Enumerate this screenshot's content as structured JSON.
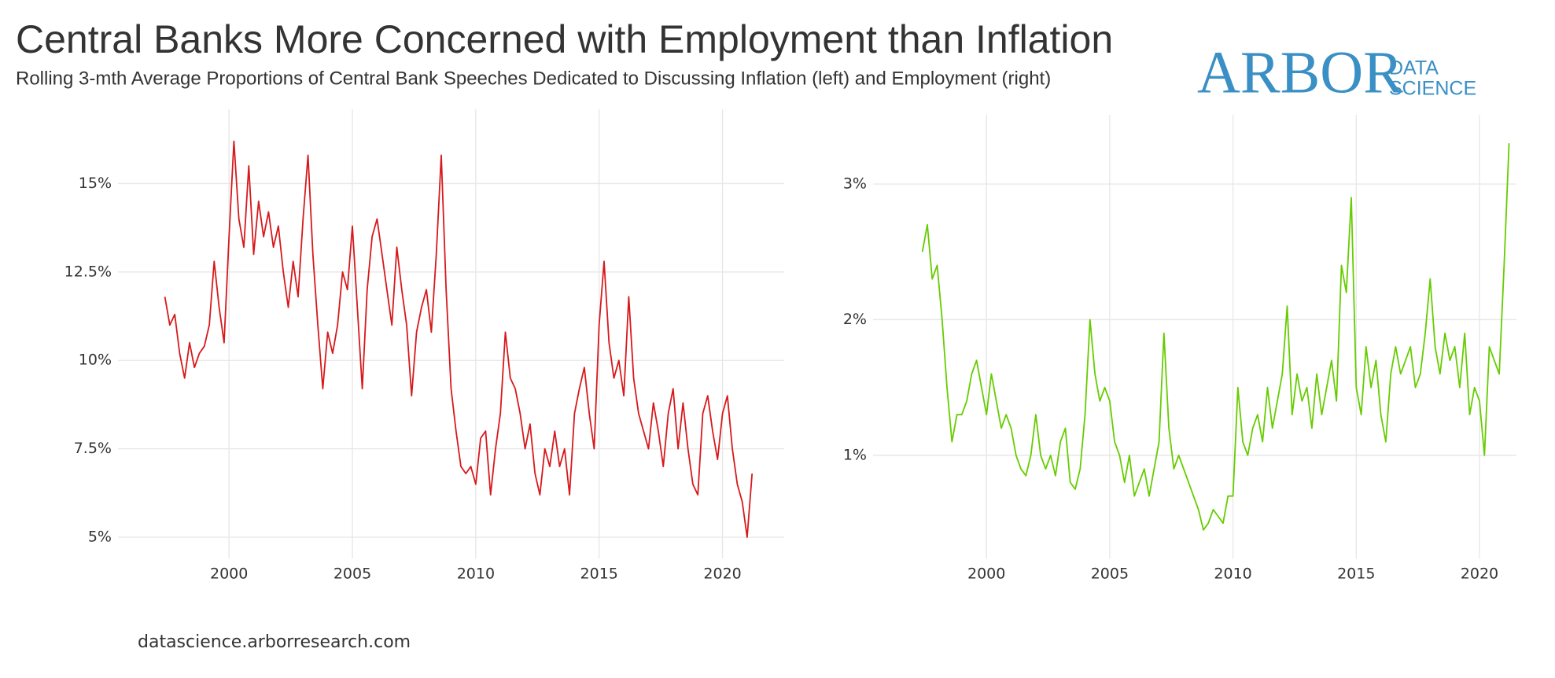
{
  "title": "Central Banks More Concerned with Employment than Inflation",
  "subtitle": "Rolling 3-mth Average Proportions of Central Bank Speeches Dedicated to Discussing Inflation (left) and Employment (right)",
  "logo": {
    "main": "ARBOR",
    "line1": "DATA",
    "line2": "SCIENCE"
  },
  "footer": "datascience.arborresearch.com",
  "chart_data": [
    {
      "type": "line",
      "color": "#d7191c",
      "xlim": [
        1995.5,
        2022.5
      ],
      "xticks": [
        2000,
        2005,
        2010,
        2015,
        2020
      ],
      "ylim": [
        4.4,
        17.1
      ],
      "yticks": [
        {
          "value": 5,
          "label": "5%"
        },
        {
          "value": 7.5,
          "label": "7.5%"
        },
        {
          "value": 10,
          "label": "10%"
        },
        {
          "value": 12.5,
          "label": "12.5%"
        },
        {
          "value": 15,
          "label": "15%"
        }
      ],
      "grid": true,
      "x": [
        1997.4,
        1997.6,
        1997.8,
        1998.0,
        1998.2,
        1998.4,
        1998.6,
        1998.8,
        1999.0,
        1999.2,
        1999.4,
        1999.6,
        1999.8,
        2000.0,
        2000.2,
        2000.4,
        2000.6,
        2000.8,
        2001.0,
        2001.2,
        2001.4,
        2001.6,
        2001.8,
        2002.0,
        2002.2,
        2002.4,
        2002.6,
        2002.8,
        2003.0,
        2003.2,
        2003.4,
        2003.6,
        2003.8,
        2004.0,
        2004.2,
        2004.4,
        2004.6,
        2004.8,
        2005.0,
        2005.2,
        2005.4,
        2005.6,
        2005.8,
        2006.0,
        2006.2,
        2006.4,
        2006.6,
        2006.8,
        2007.0,
        2007.2,
        2007.4,
        2007.6,
        2007.8,
        2008.0,
        2008.2,
        2008.4,
        2008.6,
        2008.8,
        2009.0,
        2009.2,
        2009.4,
        2009.6,
        2009.8,
        2010.0,
        2010.2,
        2010.4,
        2010.6,
        2010.8,
        2011.0,
        2011.2,
        2011.4,
        2011.6,
        2011.8,
        2012.0,
        2012.2,
        2012.4,
        2012.6,
        2012.8,
        2013.0,
        2013.2,
        2013.4,
        2013.6,
        2013.8,
        2014.0,
        2014.2,
        2014.4,
        2014.6,
        2014.8,
        2015.0,
        2015.2,
        2015.4,
        2015.6,
        2015.8,
        2016.0,
        2016.2,
        2016.4,
        2016.6,
        2016.8,
        2017.0,
        2017.2,
        2017.4,
        2017.6,
        2017.8,
        2018.0,
        2018.2,
        2018.4,
        2018.6,
        2018.8,
        2019.0,
        2019.2,
        2019.4,
        2019.6,
        2019.8,
        2020.0,
        2020.2,
        2020.4,
        2020.6,
        2020.8,
        2021.0,
        2021.2
      ],
      "values": [
        11.8,
        11.0,
        11.3,
        10.2,
        9.5,
        10.5,
        9.8,
        10.2,
        10.4,
        11.0,
        12.8,
        11.5,
        10.5,
        13.5,
        16.2,
        14.0,
        13.2,
        15.5,
        13.0,
        14.5,
        13.5,
        14.2,
        13.2,
        13.8,
        12.5,
        11.5,
        12.8,
        11.8,
        14.0,
        15.8,
        13.0,
        11.0,
        9.2,
        10.8,
        10.2,
        11.0,
        12.5,
        12.0,
        13.8,
        11.5,
        9.2,
        12.0,
        13.5,
        14.0,
        13.0,
        12.0,
        11.0,
        13.2,
        12.0,
        11.0,
        9.0,
        10.8,
        11.5,
        12.0,
        10.8,
        13.0,
        15.8,
        12.0,
        9.2,
        8.0,
        7.0,
        6.8,
        7.0,
        6.5,
        7.8,
        8.0,
        6.2,
        7.5,
        8.5,
        10.8,
        9.5,
        9.2,
        8.5,
        7.5,
        8.2,
        6.8,
        6.2,
        7.5,
        7.0,
        8.0,
        7.0,
        7.5,
        6.2,
        8.5,
        9.2,
        9.8,
        8.5,
        7.5,
        11.0,
        12.8,
        10.5,
        9.5,
        10.0,
        9.0,
        11.8,
        9.5,
        8.5,
        8.0,
        7.5,
        8.8,
        8.0,
        7.0,
        8.5,
        9.2,
        7.5,
        8.8,
        7.5,
        6.5,
        6.2,
        8.5,
        9.0,
        8.0,
        7.2,
        8.5,
        9.0,
        7.5,
        6.5,
        6.0,
        5.0,
        6.8
      ]
    },
    {
      "type": "line",
      "color": "#66cc00",
      "xlim": [
        1995.4,
        2021.5
      ],
      "xticks": [
        2000,
        2005,
        2010,
        2015,
        2020
      ],
      "ylim": [
        0.24,
        3.51
      ],
      "yticks": [
        {
          "value": 1,
          "label": "1%"
        },
        {
          "value": 2,
          "label": "2%"
        },
        {
          "value": 3,
          "label": "3%"
        }
      ],
      "grid": true,
      "x": [
        1997.4,
        1997.6,
        1997.8,
        1998.0,
        1998.2,
        1998.4,
        1998.6,
        1998.8,
        1999.0,
        1999.2,
        1999.4,
        1999.6,
        1999.8,
        2000.0,
        2000.2,
        2000.4,
        2000.6,
        2000.8,
        2001.0,
        2001.2,
        2001.4,
        2001.6,
        2001.8,
        2002.0,
        2002.2,
        2002.4,
        2002.6,
        2002.8,
        2003.0,
        2003.2,
        2003.4,
        2003.6,
        2003.8,
        2004.0,
        2004.2,
        2004.4,
        2004.6,
        2004.8,
        2005.0,
        2005.2,
        2005.4,
        2005.6,
        2005.8,
        2006.0,
        2006.2,
        2006.4,
        2006.6,
        2006.8,
        2007.0,
        2007.2,
        2007.4,
        2007.6,
        2007.8,
        2008.0,
        2008.2,
        2008.4,
        2008.6,
        2008.8,
        2009.0,
        2009.2,
        2009.4,
        2009.6,
        2009.8,
        2010.0,
        2010.2,
        2010.4,
        2010.6,
        2010.8,
        2011.0,
        2011.2,
        2011.4,
        2011.6,
        2011.8,
        2012.0,
        2012.2,
        2012.4,
        2012.6,
        2012.8,
        2013.0,
        2013.2,
        2013.4,
        2013.6,
        2013.8,
        2014.0,
        2014.2,
        2014.4,
        2014.6,
        2014.8,
        2015.0,
        2015.2,
        2015.4,
        2015.6,
        2015.8,
        2016.0,
        2016.2,
        2016.4,
        2016.6,
        2016.8,
        2017.0,
        2017.2,
        2017.4,
        2017.6,
        2017.8,
        2018.0,
        2018.2,
        2018.4,
        2018.6,
        2018.8,
        2019.0,
        2019.2,
        2019.4,
        2019.6,
        2019.8,
        2020.0,
        2020.2,
        2020.4,
        2020.6,
        2020.8,
        2021.0,
        2021.2
      ],
      "values": [
        2.5,
        2.7,
        2.3,
        2.4,
        2.0,
        1.5,
        1.1,
        1.3,
        1.3,
        1.4,
        1.6,
        1.7,
        1.5,
        1.3,
        1.6,
        1.4,
        1.2,
        1.3,
        1.2,
        1.0,
        0.9,
        0.85,
        1.0,
        1.3,
        1.0,
        0.9,
        1.0,
        0.85,
        1.1,
        1.2,
        0.8,
        0.75,
        0.9,
        1.3,
        2.0,
        1.6,
        1.4,
        1.5,
        1.4,
        1.1,
        1.0,
        0.8,
        1.0,
        0.7,
        0.8,
        0.9,
        0.7,
        0.9,
        1.1,
        1.9,
        1.2,
        0.9,
        1.0,
        0.9,
        0.8,
        0.7,
        0.6,
        0.45,
        0.5,
        0.6,
        0.55,
        0.5,
        0.7,
        0.7,
        1.5,
        1.1,
        1.0,
        1.2,
        1.3,
        1.1,
        1.5,
        1.2,
        1.4,
        1.6,
        2.1,
        1.3,
        1.6,
        1.4,
        1.5,
        1.2,
        1.6,
        1.3,
        1.5,
        1.7,
        1.4,
        2.4,
        2.2,
        2.9,
        1.5,
        1.3,
        1.8,
        1.5,
        1.7,
        1.3,
        1.1,
        1.6,
        1.8,
        1.6,
        1.7,
        1.8,
        1.5,
        1.6,
        1.9,
        2.3,
        1.8,
        1.6,
        1.9,
        1.7,
        1.8,
        1.5,
        1.9,
        1.3,
        1.5,
        1.4,
        1.0,
        1.8,
        1.7,
        1.6,
        2.4,
        3.3
      ]
    }
  ]
}
